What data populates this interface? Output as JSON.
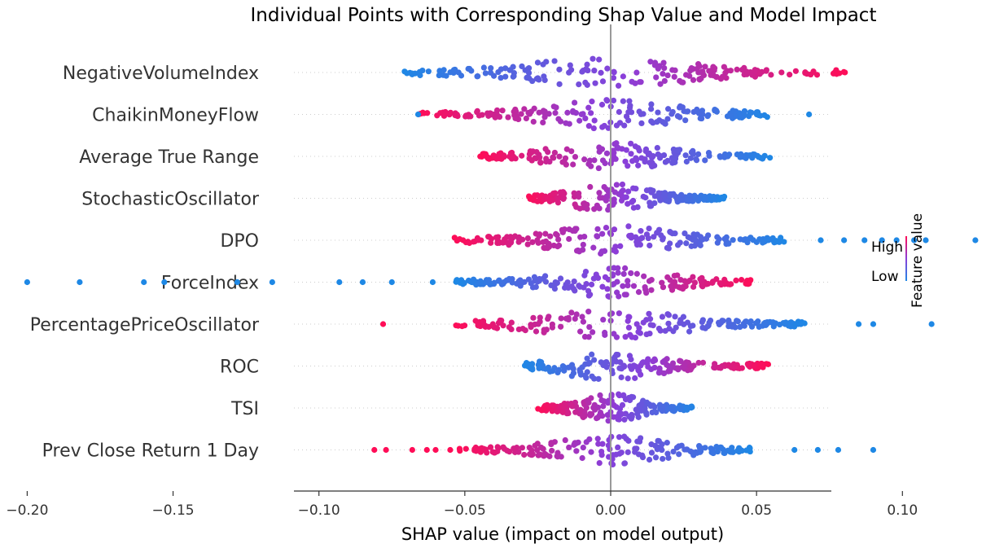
{
  "chart_data": {
    "type": "scatter",
    "subtype": "beeswarm",
    "title": "Individual Points with Corresponding Shap Value and Model Impact",
    "xlabel": "SHAP value (impact on model output)",
    "xlim": [
      -0.22,
      0.15
    ],
    "xticks": [
      "-0.20",
      "-0.15",
      "-0.10",
      "-0.05",
      "0.00",
      "0.05",
      "0.10",
      "0.15"
    ],
    "xtick_values": [
      -0.2,
      -0.15,
      -0.1,
      -0.05,
      0.0,
      0.05,
      0.1,
      0.15
    ],
    "zero_line": 0.0,
    "colorbar": {
      "label": "Feature value",
      "high": "High",
      "low": "Low"
    },
    "colors": {
      "high": "#ff0d57",
      "low": "#1e88e5",
      "zero_line": "#999999",
      "grid": "#cccccc"
    },
    "features": [
      {
        "name": "NegativeVolumeIndex",
        "direction": "positive",
        "range": [
          -0.072,
          0.081
        ],
        "outliers": []
      },
      {
        "name": "ChaikinMoneyFlow",
        "direction": "negative",
        "range": [
          -0.066,
          0.055
        ],
        "outliers": [
          -0.066,
          0.068
        ]
      },
      {
        "name": "Average True Range",
        "direction": "negative",
        "range": [
          -0.045,
          0.055
        ],
        "outliers": []
      },
      {
        "name": "StochasticOscillator",
        "direction": "negative",
        "range": [
          -0.029,
          0.039
        ],
        "outliers": []
      },
      {
        "name": "DPO",
        "direction": "negative",
        "range": [
          -0.054,
          0.06
        ],
        "outliers": [
          0.072,
          0.08,
          0.087,
          0.093,
          0.098,
          0.104,
          0.108,
          0.125,
          0.134
        ]
      },
      {
        "name": "ForceIndex",
        "direction": "positive",
        "range": [
          -0.053,
          0.049
        ],
        "outliers": [
          -0.2,
          -0.182,
          -0.16,
          -0.153,
          -0.128,
          -0.116,
          -0.093,
          -0.085,
          -0.075,
          -0.061
        ]
      },
      {
        "name": "PercentagePriceOscillator",
        "direction": "negative",
        "range": [
          -0.054,
          0.067
        ],
        "outliers": [
          -0.078,
          0.085,
          0.09,
          0.11
        ]
      },
      {
        "name": "ROC",
        "direction": "positive",
        "range": [
          -0.03,
          0.054
        ],
        "outliers": []
      },
      {
        "name": "TSI",
        "direction": "negative",
        "range": [
          -0.025,
          0.029
        ],
        "outliers": []
      },
      {
        "name": "Prev Close Return 1 Day",
        "direction": "negative",
        "range": [
          -0.052,
          0.048
        ],
        "outliers": [
          -0.081,
          -0.077,
          -0.068,
          -0.063,
          -0.06,
          -0.055,
          0.063,
          0.071,
          0.078,
          0.09
        ]
      }
    ]
  }
}
